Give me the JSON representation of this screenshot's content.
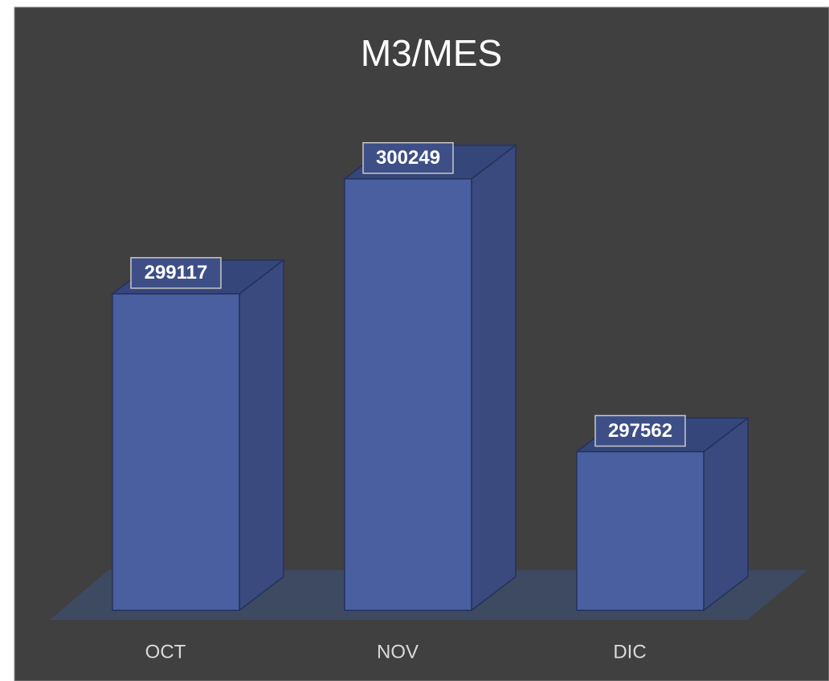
{
  "chart_data": {
    "type": "bar3d",
    "title": "M3/MES",
    "categories": [
      "OCT",
      "NOV",
      "DIC"
    ],
    "values": [
      299117,
      300249,
      297562
    ],
    "color": "#4a5fa0",
    "ylim": [
      296000,
      300500
    ]
  }
}
